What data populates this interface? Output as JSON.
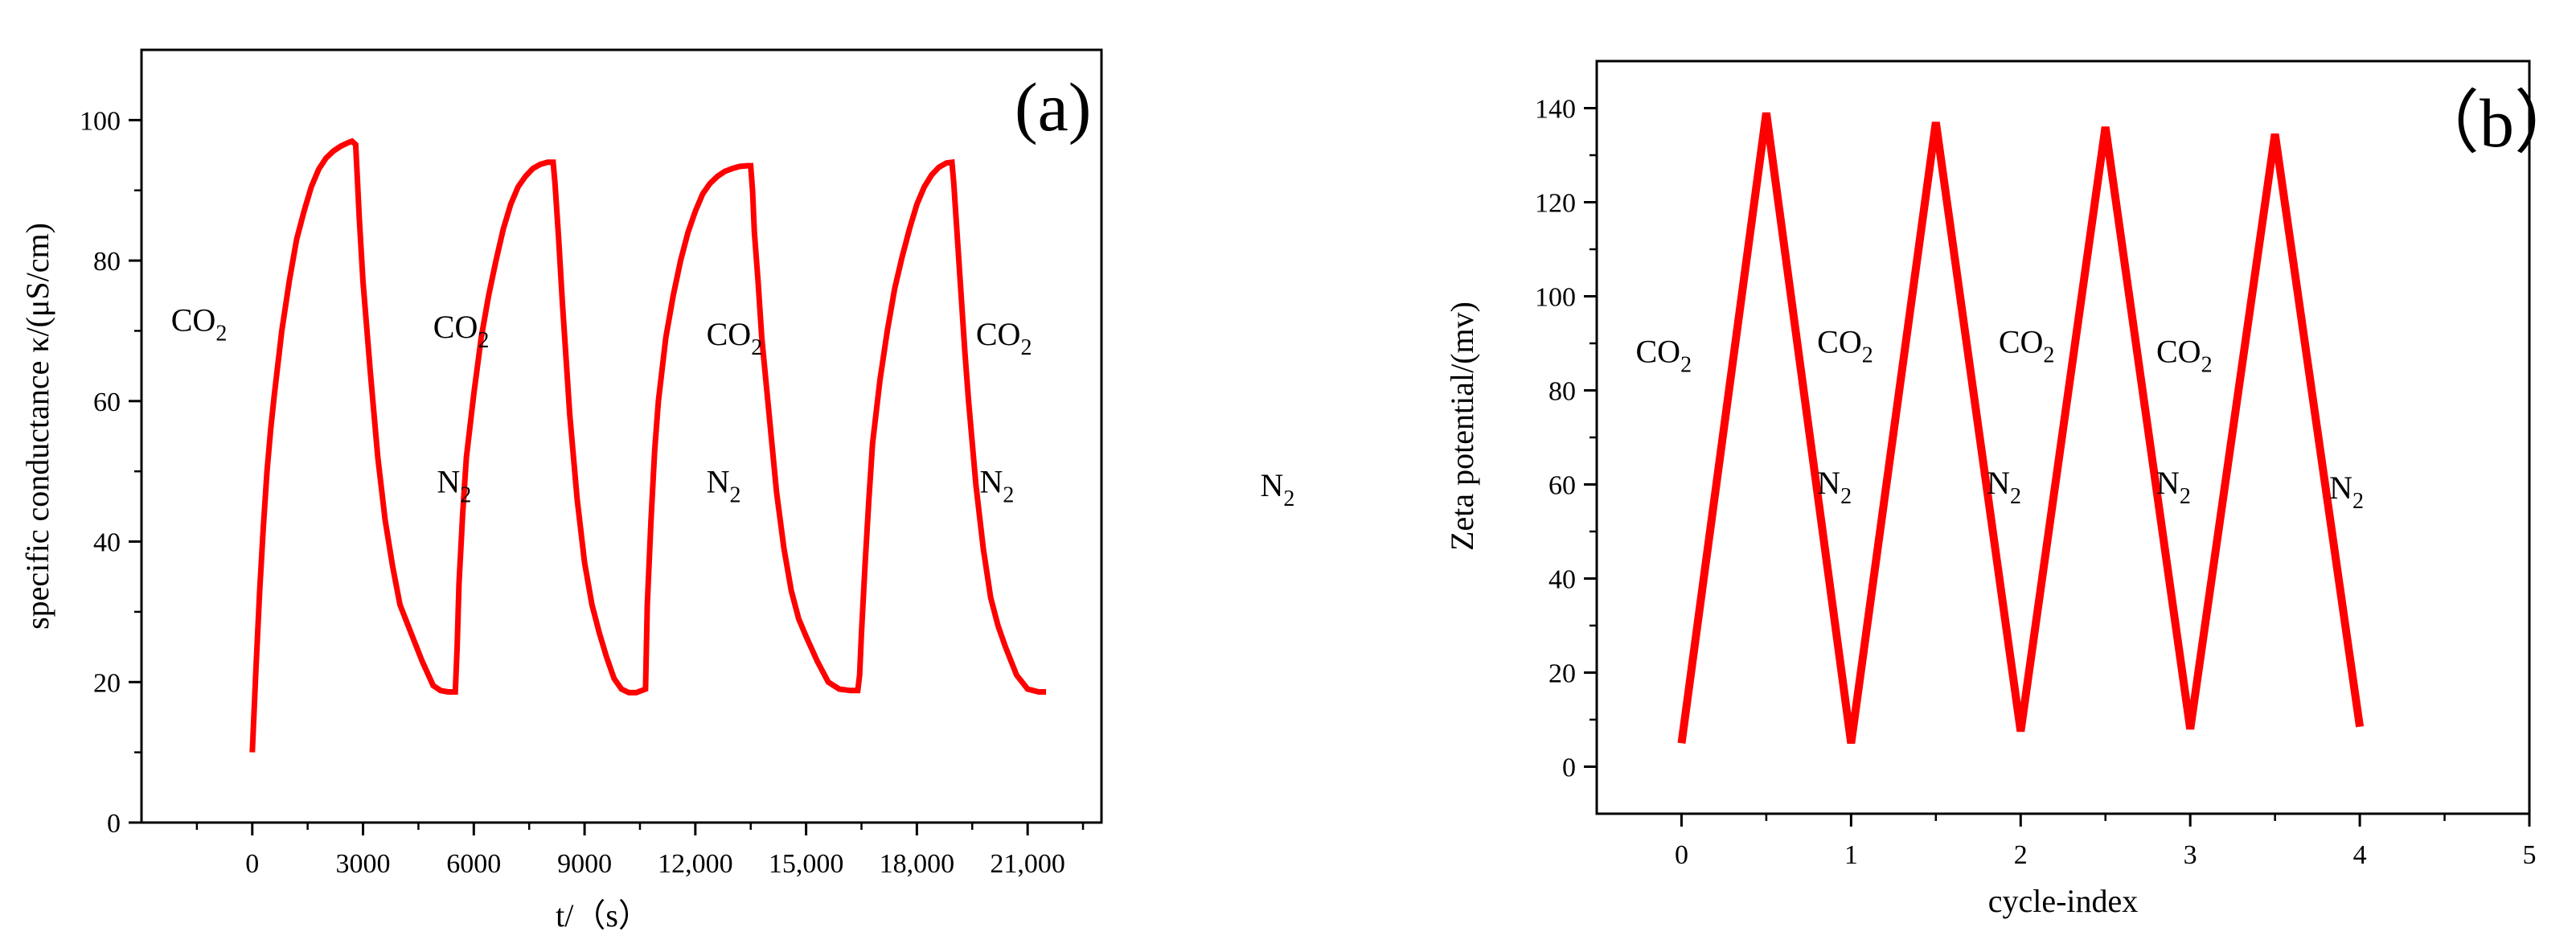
{
  "colors": {
    "series": "#ff0000",
    "axis": "#000000",
    "background": "#ffffff"
  },
  "chart_data": [
    {
      "type": "line",
      "panel_label": "(a)",
      "title": "",
      "xlabel": "t/（s）",
      "ylabel": "specific conductance κ/(μS/cm)",
      "xlim": [
        -3000,
        23000
      ],
      "ylim": [
        0,
        110
      ],
      "xticks": [
        {
          "value": 0,
          "label": "0"
        },
        {
          "value": 3000,
          "label": "3000"
        },
        {
          "value": 6000,
          "label": "6000"
        },
        {
          "value": 9000,
          "label": "9000"
        },
        {
          "value": 12000,
          "label": "12,000"
        },
        {
          "value": 15000,
          "label": "15,000"
        },
        {
          "value": 18000,
          "label": "18,000"
        },
        {
          "value": 21000,
          "label": "21,000"
        }
      ],
      "yticks": [
        {
          "value": 0,
          "label": "0"
        },
        {
          "value": 20,
          "label": "20"
        },
        {
          "value": 40,
          "label": "40"
        },
        {
          "value": 60,
          "label": "60"
        },
        {
          "value": 80,
          "label": "80"
        },
        {
          "value": 100,
          "label": "100"
        }
      ],
      "series": [
        {
          "name": "specific conductance",
          "x": [
            0,
            100,
            200,
            300,
            400,
            500,
            600,
            800,
            1000,
            1200,
            1400,
            1600,
            1800,
            2000,
            2200,
            2400,
            2600,
            2700,
            2800,
            2900,
            3000,
            3200,
            3400,
            3600,
            3800,
            4000,
            4300,
            4600,
            4900,
            5100,
            5300,
            5500,
            5550,
            5600,
            5700,
            5800,
            6000,
            6200,
            6400,
            6600,
            6800,
            7000,
            7200,
            7400,
            7600,
            7800,
            8000,
            8150,
            8200,
            8300,
            8400,
            8500,
            8600,
            8800,
            9000,
            9200,
            9400,
            9600,
            9800,
            10000,
            10200,
            10400,
            10650,
            10700,
            10800,
            10900,
            11000,
            11200,
            11400,
            11600,
            11800,
            12000,
            12200,
            12400,
            12600,
            12800,
            13000,
            13200,
            13400,
            13500,
            13550,
            13600,
            13700,
            13800,
            14000,
            14200,
            14400,
            14600,
            14800,
            15000,
            15300,
            15600,
            15900,
            16200,
            16400,
            16450,
            16500,
            16600,
            16700,
            16800,
            17000,
            17200,
            17400,
            17600,
            17800,
            18000,
            18200,
            18400,
            18600,
            18800,
            18950,
            19000,
            19100,
            19200,
            19300,
            19400,
            19600,
            19800,
            20000,
            20200,
            20400,
            20700,
            21000,
            21300,
            21500
          ],
          "y": [
            10,
            22,
            33,
            42,
            50,
            56,
            61,
            70,
            77,
            83,
            87,
            90.5,
            93,
            94.6,
            95.6,
            96.3,
            96.8,
            97,
            96.5,
            86,
            77,
            64,
            52,
            43,
            36.5,
            31,
            27,
            23,
            19.5,
            18.8,
            18.6,
            18.6,
            25,
            34,
            44,
            52,
            61,
            69,
            75,
            80,
            84.5,
            88,
            90.5,
            92,
            93.1,
            93.7,
            94,
            94,
            91,
            83,
            74,
            66,
            58,
            46,
            37,
            31,
            27,
            23.5,
            20.5,
            19,
            18.5,
            18.5,
            19,
            31,
            43,
            53,
            60,
            69,
            75,
            80,
            84,
            87,
            89.5,
            91,
            92,
            92.7,
            93.1,
            93.4,
            93.5,
            93.5,
            90,
            84,
            77,
            69,
            58,
            47,
            39,
            33,
            29,
            26.5,
            23,
            20,
            19,
            18.8,
            18.8,
            21,
            27,
            37,
            46,
            54,
            63,
            70,
            76,
            80.5,
            84.5,
            88,
            90.5,
            92.2,
            93.3,
            93.9,
            94,
            91,
            83,
            75,
            67,
            60,
            48,
            39,
            32,
            28,
            25,
            21,
            19,
            18.6,
            18.6
          ]
        }
      ],
      "annotations": [
        {
          "text": "CO",
          "sub": "2",
          "x": -2200,
          "y": 70
        },
        {
          "text": "CO",
          "sub": "2",
          "x": 4900,
          "y": 69
        },
        {
          "text": "CO",
          "sub": "2",
          "x": 12300,
          "y": 68
        },
        {
          "text": "CO",
          "sub": "2",
          "x": 19600,
          "y": 68
        },
        {
          "text": "N",
          "sub": "2",
          "x": 5000,
          "y": 47
        },
        {
          "text": "N",
          "sub": "2",
          "x": 12300,
          "y": 47
        },
        {
          "text": "N",
          "sub": "2",
          "x": 19700,
          "y": 47
        },
        {
          "text": "N",
          "sub": "2",
          "x": 27300,
          "y": 46.5
        }
      ]
    },
    {
      "type": "line",
      "panel_label": "（b）",
      "title": "",
      "xlabel": "cycle-index",
      "ylabel": "Zeta potential/(mv)",
      "xlim": [
        -0.5,
        5
      ],
      "ylim": [
        -10,
        150
      ],
      "xticks": [
        {
          "value": 0,
          "label": "0"
        },
        {
          "value": 1,
          "label": "1"
        },
        {
          "value": 2,
          "label": "2"
        },
        {
          "value": 3,
          "label": "3"
        },
        {
          "value": 4,
          "label": "4"
        },
        {
          "value": 5,
          "label": "5"
        }
      ],
      "yticks": [
        {
          "value": 0,
          "label": "0"
        },
        {
          "value": 20,
          "label": "20"
        },
        {
          "value": 40,
          "label": "40"
        },
        {
          "value": 60,
          "label": "60"
        },
        {
          "value": 80,
          "label": "80"
        },
        {
          "value": 100,
          "label": "100"
        },
        {
          "value": 120,
          "label": "120"
        },
        {
          "value": 140,
          "label": "140"
        }
      ],
      "series": [
        {
          "name": "Zeta potential",
          "x": [
            0,
            0.5,
            1,
            1.5,
            2,
            2.5,
            3,
            3.5,
            4
          ],
          "y": [
            5,
            139,
            5,
            137,
            7.5,
            136,
            8,
            134.5,
            8.5
          ]
        }
      ],
      "annotations": [
        {
          "text": "CO",
          "sub": "2",
          "x": -0.27,
          "y": 86
        },
        {
          "text": "CO",
          "sub": "2",
          "x": 0.8,
          "y": 88
        },
        {
          "text": "CO",
          "sub": "2",
          "x": 1.87,
          "y": 88
        },
        {
          "text": "CO",
          "sub": "2",
          "x": 2.8,
          "y": 86
        },
        {
          "text": "N",
          "sub": "2",
          "x": 0.8,
          "y": 58
        },
        {
          "text": "N",
          "sub": "2",
          "x": 1.8,
          "y": 58
        },
        {
          "text": "N",
          "sub": "2",
          "x": 2.8,
          "y": 58
        },
        {
          "text": "N",
          "sub": "2",
          "x": 3.82,
          "y": 57
        }
      ]
    }
  ]
}
